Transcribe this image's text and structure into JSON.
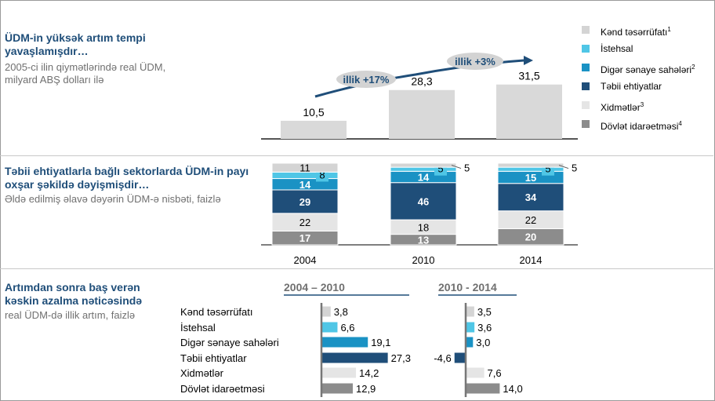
{
  "colors": {
    "kend": "#d4d4d4",
    "istehsal": "#4fc6e6",
    "diger": "#1a92c4",
    "tebii": "#1f4e79",
    "xidmetler": "#e5e5e5",
    "dovlet": "#8c8c8c",
    "gdp_bar": "#d9d9d9",
    "arrow": "#1f4e79",
    "title": "#1f4e79"
  },
  "sections": {
    "gdp": {
      "title": "ÜDM-in yüksək artım tempi yavaşlamışdır…",
      "subtitle": "2005-ci ilin qiymətlərində real ÜDM, milyard ABŞ dolları ilə"
    },
    "structure": {
      "title": "Təbii ehtiyatlarla bağlı sektorlarda ÜDM-in payı oxşar şəkildə dəyişmişdir…",
      "subtitle": "Əldə edilmiş əlavə dəyərin ÜDM-ə nisbəti, faizlə"
    },
    "growth": {
      "title": "Artımdan sonra baş verən kəskin azalma nəticəsində",
      "subtitle": "real ÜDM-də illik artım, faizlə"
    }
  },
  "legend": [
    {
      "label": "Kənd təsərrüfatı",
      "sup": "1",
      "color_key": "kend"
    },
    {
      "label": "İstehsal",
      "sup": "",
      "color_key": "istehsal"
    },
    {
      "label": "Digər sənaye sahələri",
      "sup": "2",
      "color_key": "diger"
    },
    {
      "label": "Təbii ehtiyatlar",
      "sup": "",
      "color_key": "tebii"
    },
    {
      "label": "Xidmətlər",
      "sup": "3",
      "color_key": "xidmetler"
    },
    {
      "label": "Dövlət idarəetməsi",
      "sup": "4",
      "color_key": "dovlet"
    }
  ],
  "chart_data": [
    {
      "type": "bar",
      "categories": [
        "2004",
        "2010",
        "2014"
      ],
      "values": [
        10.5,
        28.3,
        31.5
      ],
      "value_labels": [
        "10,5",
        "28,3",
        "31,5"
      ],
      "annotations": [
        "illik +17%",
        "illik +3%"
      ],
      "ylim": [
        0,
        35
      ]
    },
    {
      "type": "bar",
      "stacked": true,
      "categories": [
        "2004",
        "2010",
        "2014"
      ],
      "series": [
        {
          "name": "Dövlət idarəetməsi",
          "values": [
            17,
            13,
            20
          ]
        },
        {
          "name": "Xidmətlər",
          "values": [
            22,
            18,
            22
          ]
        },
        {
          "name": "Təbii ehtiyatlar",
          "values": [
            29,
            46,
            34
          ]
        },
        {
          "name": "Digər sənaye sahələri",
          "values": [
            14,
            14,
            15
          ]
        },
        {
          "name": "İstehsal",
          "values": [
            8,
            5,
            5
          ]
        },
        {
          "name": "Kənd təsərrüfatı",
          "values": [
            11,
            5,
            5
          ]
        }
      ],
      "ylim": [
        0,
        100
      ]
    },
    {
      "type": "bar",
      "orientation": "horizontal",
      "categories": [
        "Kənd təsərrüfatı",
        "İstehsal",
        "Digər sənaye sahələri",
        "Təbii ehtiyatlar",
        "Xidmətlər",
        "Dövlət idarəetməsi"
      ],
      "series": [
        {
          "name": "2004 – 2010",
          "values": [
            3.8,
            6.6,
            19.1,
            27.3,
            14.2,
            12.9
          ],
          "labels": [
            "3,8",
            "6,6",
            "19,1",
            "27,3",
            "14,2",
            "12,9"
          ]
        },
        {
          "name": "2010 - 2014",
          "values": [
            3.5,
            3.6,
            3.0,
            -4.6,
            7.6,
            14.0
          ],
          "labels": [
            "3,5",
            "3,6",
            "3,0",
            "-4,6",
            "7,6",
            "14,0"
          ]
        }
      ]
    }
  ]
}
